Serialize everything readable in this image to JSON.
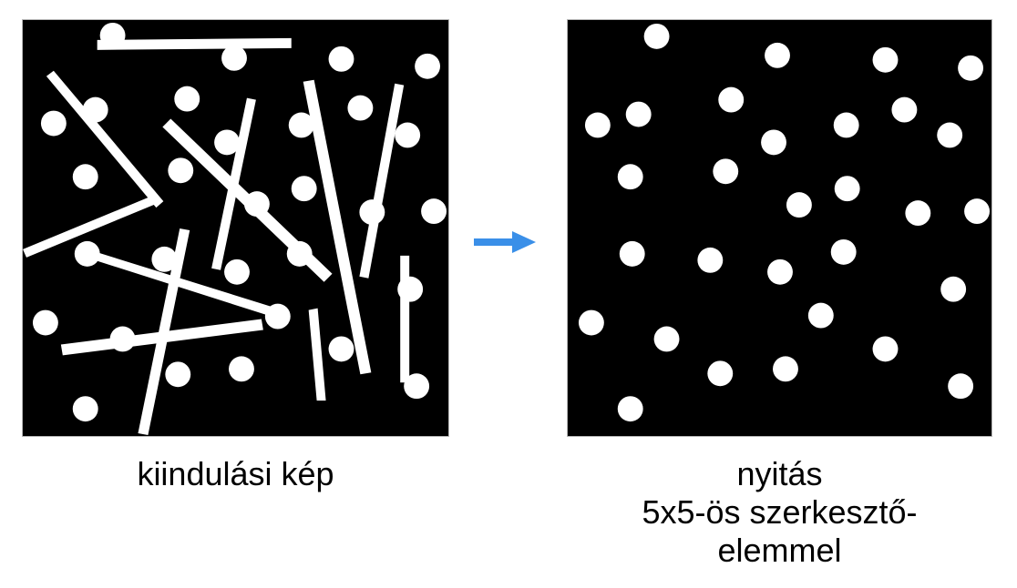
{
  "figure": {
    "left_caption": "kiindulási kép",
    "right_caption_lines": [
      "nyitás",
      "5x5-ös szerkesztő-",
      "elemmel"
    ],
    "arrow_color": "#3a8fe8",
    "foreground_color": "#ffffff",
    "background_color": "#000000"
  }
}
